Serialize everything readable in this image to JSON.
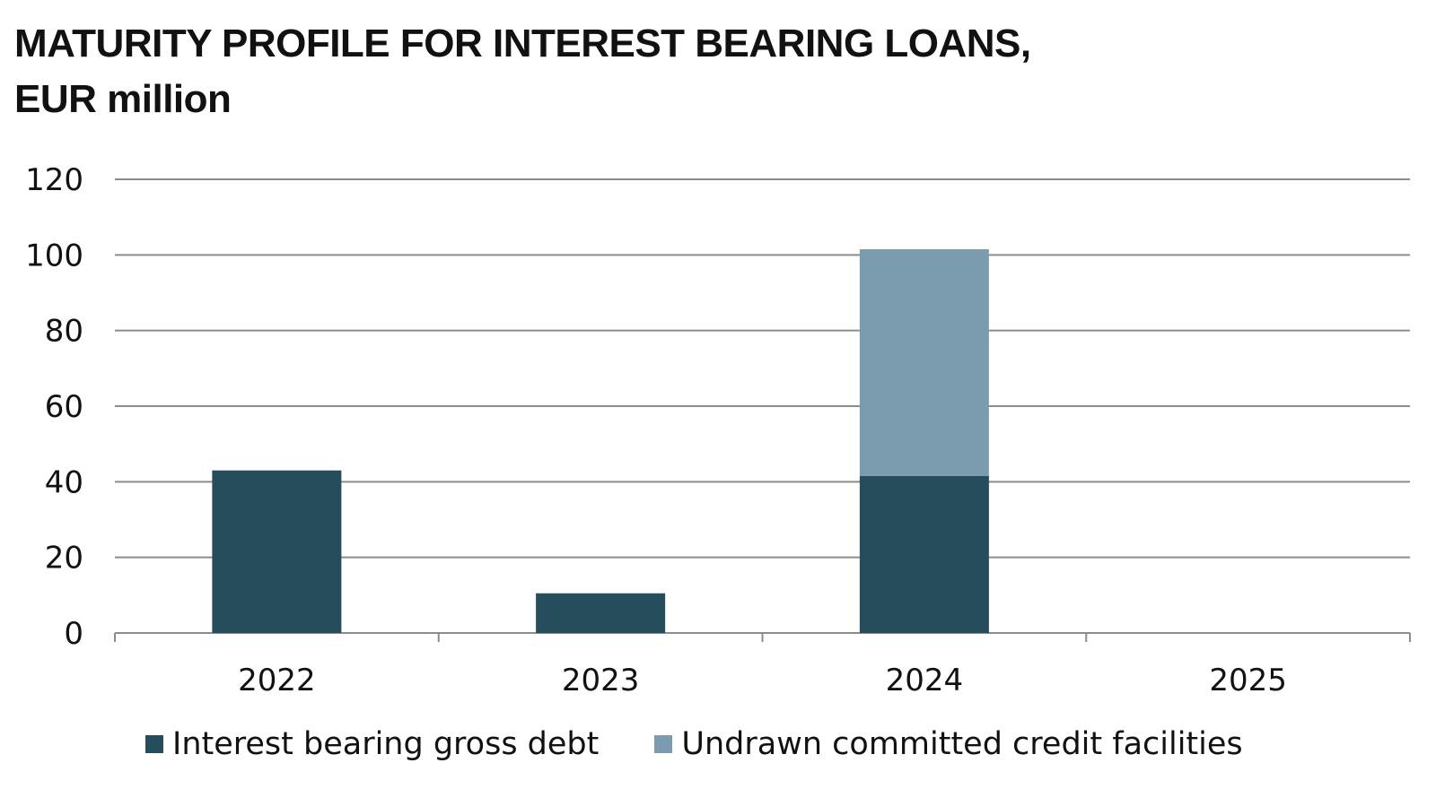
{
  "chart_data": {
    "type": "bar",
    "stacked": true,
    "title": "MATURITY PROFILE FOR INTEREST BEARING LOANS,",
    "subtitle": "EUR million",
    "categories": [
      "2022",
      "2023",
      "2024",
      "2025"
    ],
    "series": [
      {
        "name": "Interest bearing gross debt",
        "color": "#264d5b",
        "values": [
          43,
          10.5,
          41.5,
          0
        ]
      },
      {
        "name": "Undrawn committed credit facilities",
        "color": "#7b9bae",
        "values": [
          0,
          0,
          60,
          0
        ]
      }
    ],
    "ylim": [
      0,
      120
    ],
    "yticks": [
      0,
      20,
      40,
      60,
      80,
      100,
      120
    ],
    "grid": true,
    "legend_position": "bottom",
    "xlabel": "",
    "ylabel": ""
  },
  "colors": {
    "gridline": "#8c8c8c",
    "axis": "#8c8c8c"
  }
}
